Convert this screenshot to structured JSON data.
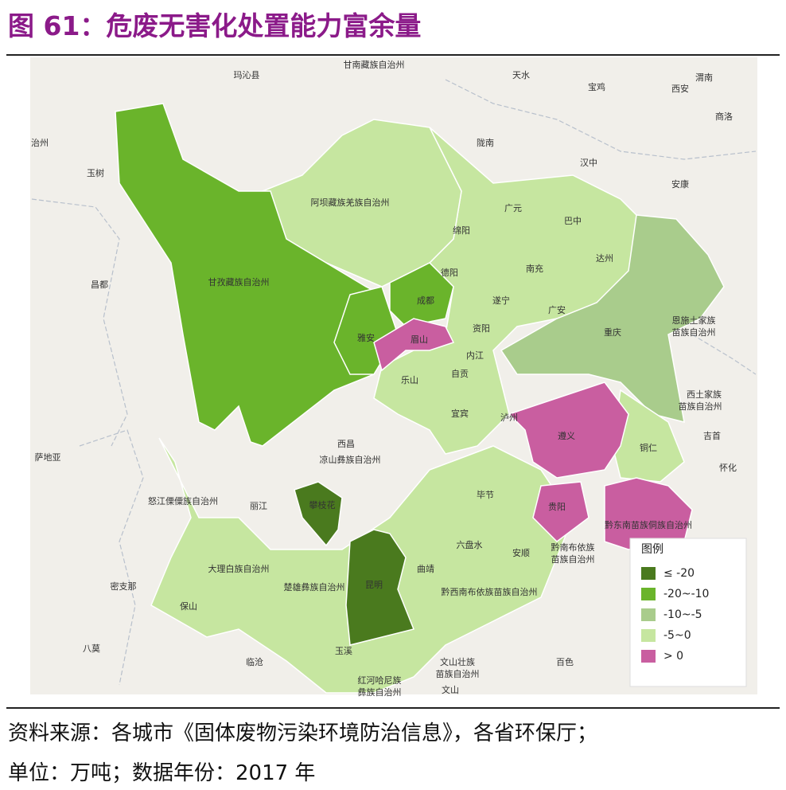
{
  "header": {
    "title": "图 61：危废无害化处置能力富余量"
  },
  "map": {
    "labels": [
      "玛沁县",
      "甘南藏族自治州",
      "天水",
      "宝鸡",
      "西安",
      "渭南",
      "商洛",
      "治州",
      "陇南",
      "汉中",
      "玉树",
      "安康",
      "阿坝藏族羌族自治州",
      "广元",
      "巴中",
      "绵阳",
      "南充",
      "达州",
      "德阳",
      "昌都",
      "甘孜藏族自治州",
      "成都",
      "遂宁",
      "广安",
      "恩施土家族",
      "苗族自治州",
      "雅安",
      "眉山",
      "资阳",
      "重庆",
      "内江",
      "乐山",
      "自贡",
      "西土家族",
      "苗族自治州",
      "宜宾",
      "泸州",
      "遵义",
      "铜仁",
      "吉首",
      "西昌",
      "凉山彝族自治州",
      "萨地亚",
      "怀化",
      "怒江傈僳族自治州",
      "丽江",
      "攀枝花",
      "毕节",
      "贵阳",
      "黔东南苗族侗族自治州",
      "黔南布依族",
      "苗族自治州",
      "六盘水",
      "安顺",
      "大理白族自治州",
      "曲靖",
      "楚雄彝族自治州",
      "昆明",
      "密支那",
      "黔西南布依族苗族自治州",
      "保山",
      "八莫",
      "临沧",
      "玉溪",
      "文山壮族",
      "苗族自治州",
      "百色",
      "红河哈尼族",
      "彝族自治州",
      "文山"
    ]
  },
  "legend": {
    "title": "图例",
    "items": [
      {
        "label": "≤ -20",
        "color": "#4a7a1e"
      },
      {
        "label": "-20~-10",
        "color": "#6ab42b"
      },
      {
        "label": "-10~-5",
        "color": "#a9cc8c"
      },
      {
        "label": "-5~0",
        "color": "#c6e6a0"
      },
      {
        "label": "> 0",
        "color": "#c95ea0"
      }
    ]
  },
  "footer": {
    "source": "资料来源：各城市《固体废物污染环境防治信息》，各省环保厅；",
    "unit": "单位：万吨；数据年份：2017 年"
  }
}
